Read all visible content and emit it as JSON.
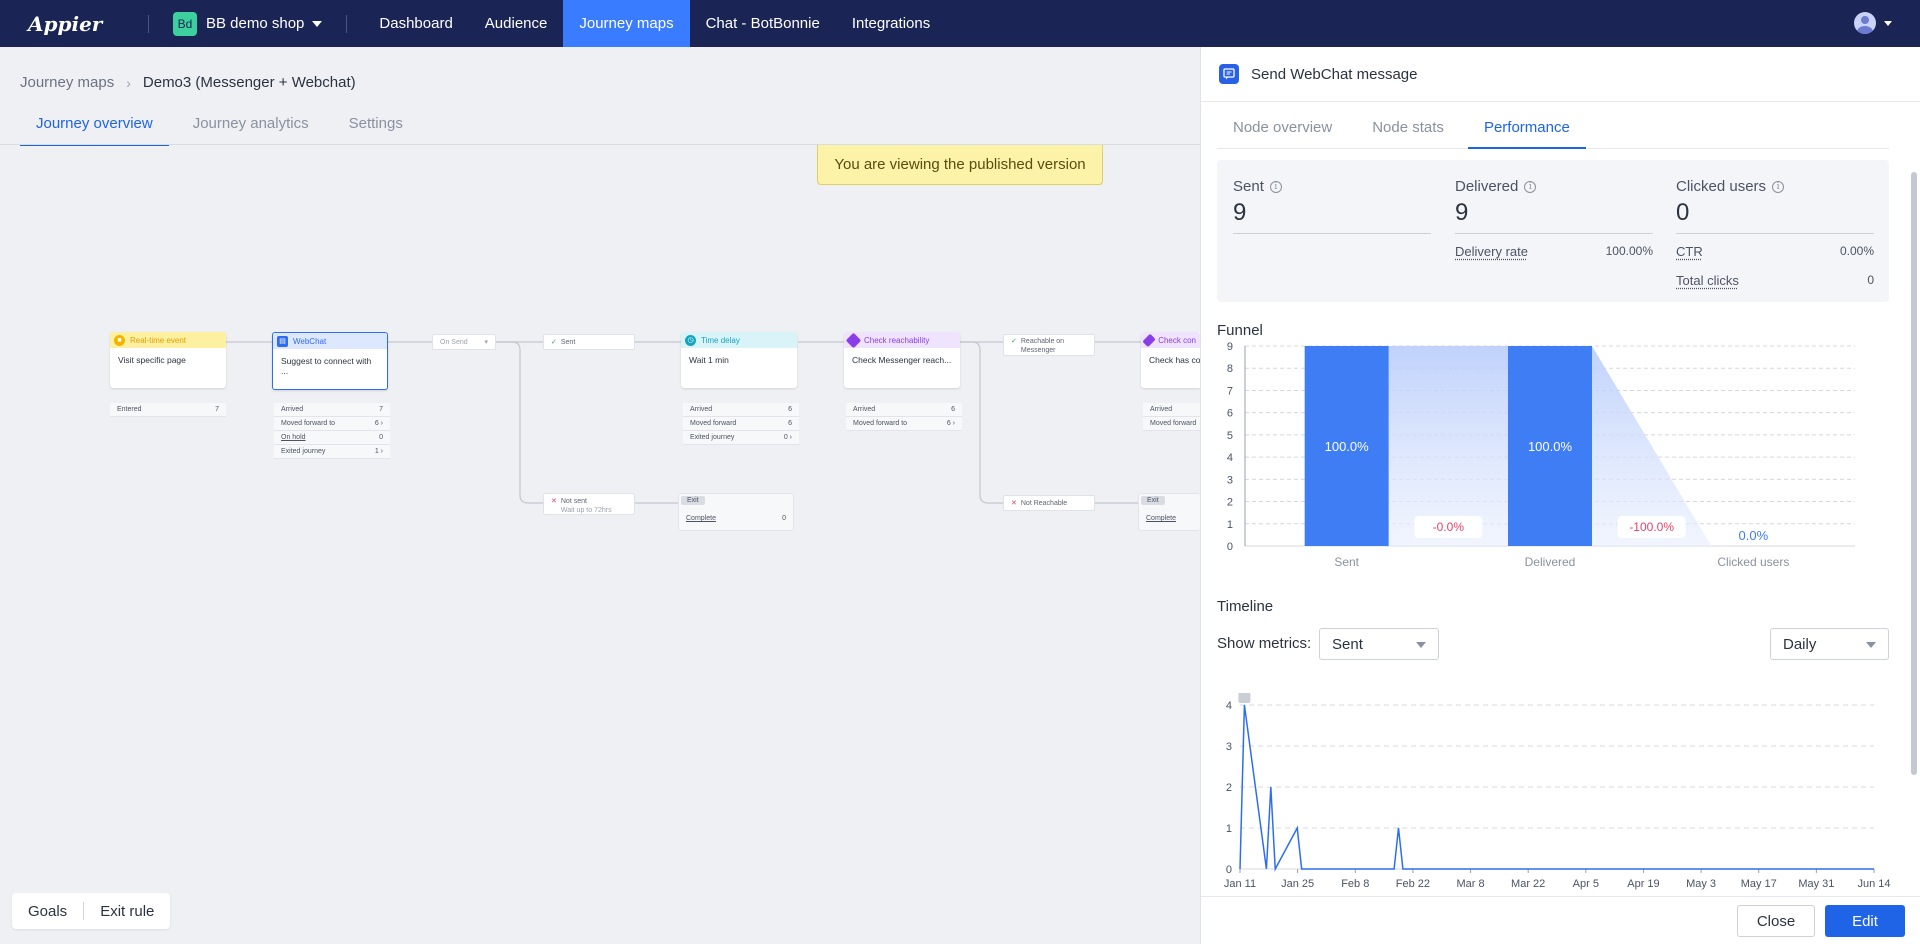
{
  "nav": {
    "logo": "Appier",
    "shop_badge": "Bd",
    "shop_name": "BB demo shop",
    "links": [
      "Dashboard",
      "Audience",
      "Journey maps",
      "Chat - BotBonnie",
      "Integrations"
    ]
  },
  "breadcrumb": {
    "parent": "Journey maps",
    "current": "Demo3 (Messenger + Webchat)"
  },
  "page_tabs": [
    "Journey overview",
    "Journey analytics",
    "Settings"
  ],
  "banner": "You are viewing the published version",
  "canvas": {
    "nodes": {
      "realtime": {
        "type": "Real-time event",
        "body": "Visit specific page",
        "stats": [
          {
            "label": "Entered",
            "value": "7"
          }
        ]
      },
      "webchat": {
        "type": "WebChat",
        "body": "Suggest to connect with ...",
        "stats": [
          {
            "label": "Arrived",
            "value": "7"
          },
          {
            "label": "Moved forward to",
            "value": "6"
          },
          {
            "label": "On hold",
            "value": "0"
          },
          {
            "label": "Exited journey",
            "value": "1"
          }
        ]
      },
      "timedelay": {
        "type": "Time delay",
        "body": "Wait 1 min",
        "stats": [
          {
            "label": "Arrived",
            "value": "6"
          },
          {
            "label": "Moved forward",
            "value": "6"
          },
          {
            "label": "Exited journey",
            "value": "0"
          }
        ]
      },
      "reach": {
        "type": "Check reachability",
        "body": "Check Messenger reach...",
        "stats": [
          {
            "label": "Arrived",
            "value": "6"
          },
          {
            "label": "Moved forward to",
            "value": "6"
          }
        ]
      },
      "checkcon": {
        "type": "Check con",
        "body": "Check has co",
        "stats": [
          {
            "label": "Arrived",
            "value": ""
          },
          {
            "label": "Moved forward",
            "value": ""
          }
        ]
      }
    },
    "chips": {
      "on_send": "On Send",
      "sent": "Sent",
      "not_sent": "Not sent",
      "not_sent_sub": "Wait up to 72hrs",
      "reachable": "Reachable on",
      "reachable_sub": "Messenger",
      "not_reachable": "Not Reachable"
    },
    "exits": [
      {
        "tag": "Exit",
        "label": "Complete",
        "value": "0"
      },
      {
        "tag": "Exit",
        "label": "Complete",
        "value": ""
      }
    ]
  },
  "bottom_buttons": [
    "Goals",
    "Exit rule"
  ],
  "panel": {
    "title": "Send WebChat message",
    "tabs": [
      "Node overview",
      "Node stats",
      "Performance"
    ],
    "metrics": {
      "sent": {
        "label": "Sent",
        "value": "9"
      },
      "delivered": {
        "label": "Delivered",
        "value": "9",
        "sub_label": "Delivery rate",
        "sub_value": "100.00%"
      },
      "clicked": {
        "label": "Clicked users",
        "value": "0",
        "ctr_label": "CTR",
        "ctr_value": "0.00%",
        "clicks_label": "Total clicks",
        "clicks_value": "0"
      }
    },
    "funnel_title": "Funnel",
    "timeline_title": "Timeline",
    "show_metrics_label": "Show metrics:",
    "metric_select": "Sent",
    "period_select": "Daily",
    "close": "Close",
    "edit": "Edit"
  },
  "chart_data": [
    {
      "type": "bar",
      "title": "Funnel",
      "categories": [
        "Sent",
        "Delivered",
        "Clicked users"
      ],
      "values": [
        9,
        9,
        0
      ],
      "bar_labels": [
        "100.0%",
        "100.0%",
        "0.0%"
      ],
      "drop_labels": [
        "-0.0%",
        "-100.0%"
      ],
      "ylim": [
        0,
        9
      ],
      "yticks": [
        "0",
        "1",
        "2",
        "3",
        "4",
        "5",
        "6",
        "7",
        "8",
        "9"
      ]
    },
    {
      "type": "line",
      "title": "Timeline",
      "series": [
        {
          "name": "Sent",
          "x": [
            0,
            0.25,
            1.5,
            1.75,
            2,
            3.25,
            3.5,
            8.75,
            9,
            9.25,
            36
          ],
          "values": [
            0,
            4,
            0,
            2,
            0,
            1,
            0,
            0,
            1,
            0,
            0
          ]
        }
      ],
      "xticks": [
        "Jan 11",
        "Jan 25",
        "Feb 8",
        "Feb 22",
        "Mar 8",
        "Mar 22",
        "Apr 5",
        "Apr 19",
        "May 3",
        "May 17",
        "May 31",
        "Jun 14"
      ],
      "yticks": [
        "0",
        "1",
        "2",
        "3",
        "4"
      ],
      "ylim": [
        0,
        4
      ],
      "xlim": [
        0,
        36
      ]
    }
  ],
  "colors": {
    "nav_bg": "#1a2455",
    "accent": "#1f64e6",
    "bar": "#3f7df5",
    "negative": "#e0446a"
  }
}
